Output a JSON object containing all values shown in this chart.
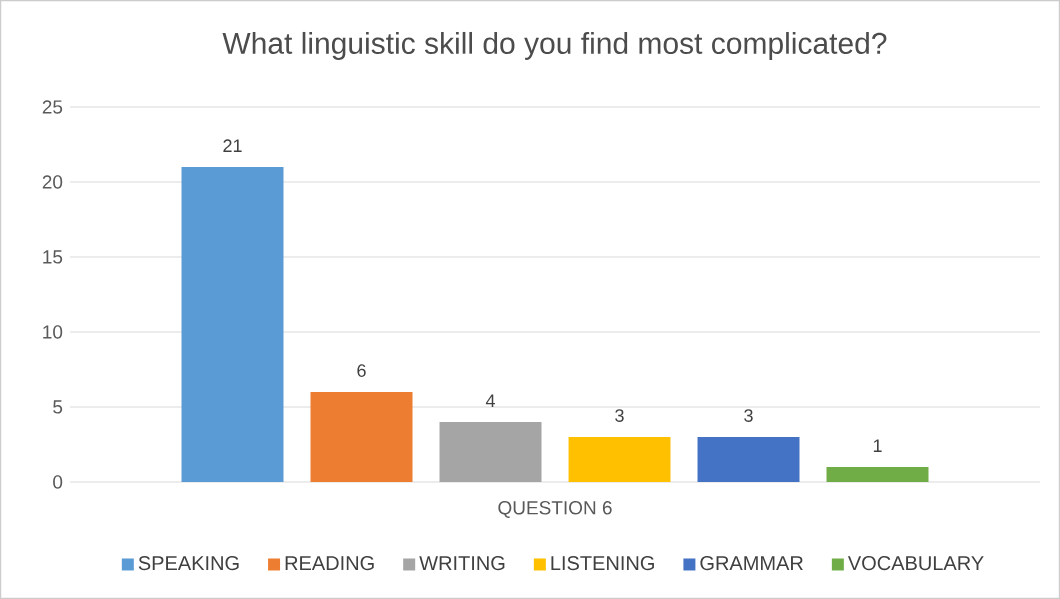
{
  "chart_data": {
    "type": "bar",
    "title": "What linguistic skill do you find most complicated?",
    "categories": [
      "QUESTION 6"
    ],
    "series": [
      {
        "name": "SPEAKING",
        "color": "#5b9bd5",
        "values": [
          21
        ]
      },
      {
        "name": "READING",
        "color": "#ed7d31",
        "values": [
          6
        ]
      },
      {
        "name": "WRITING",
        "color": "#a5a5a5",
        "values": [
          4
        ]
      },
      {
        "name": "LISTENING",
        "color": "#ffc000",
        "values": [
          3
        ]
      },
      {
        "name": "GRAMMAR",
        "color": "#4472c4",
        "values": [
          3
        ]
      },
      {
        "name": "VOCABULARY",
        "color": "#70ad47",
        "values": [
          1
        ]
      }
    ],
    "ylim": [
      0,
      25
    ],
    "yticks": [
      0,
      5,
      10,
      15,
      20,
      25
    ],
    "grid": "y",
    "legend": "bottom",
    "data_labels": true
  }
}
